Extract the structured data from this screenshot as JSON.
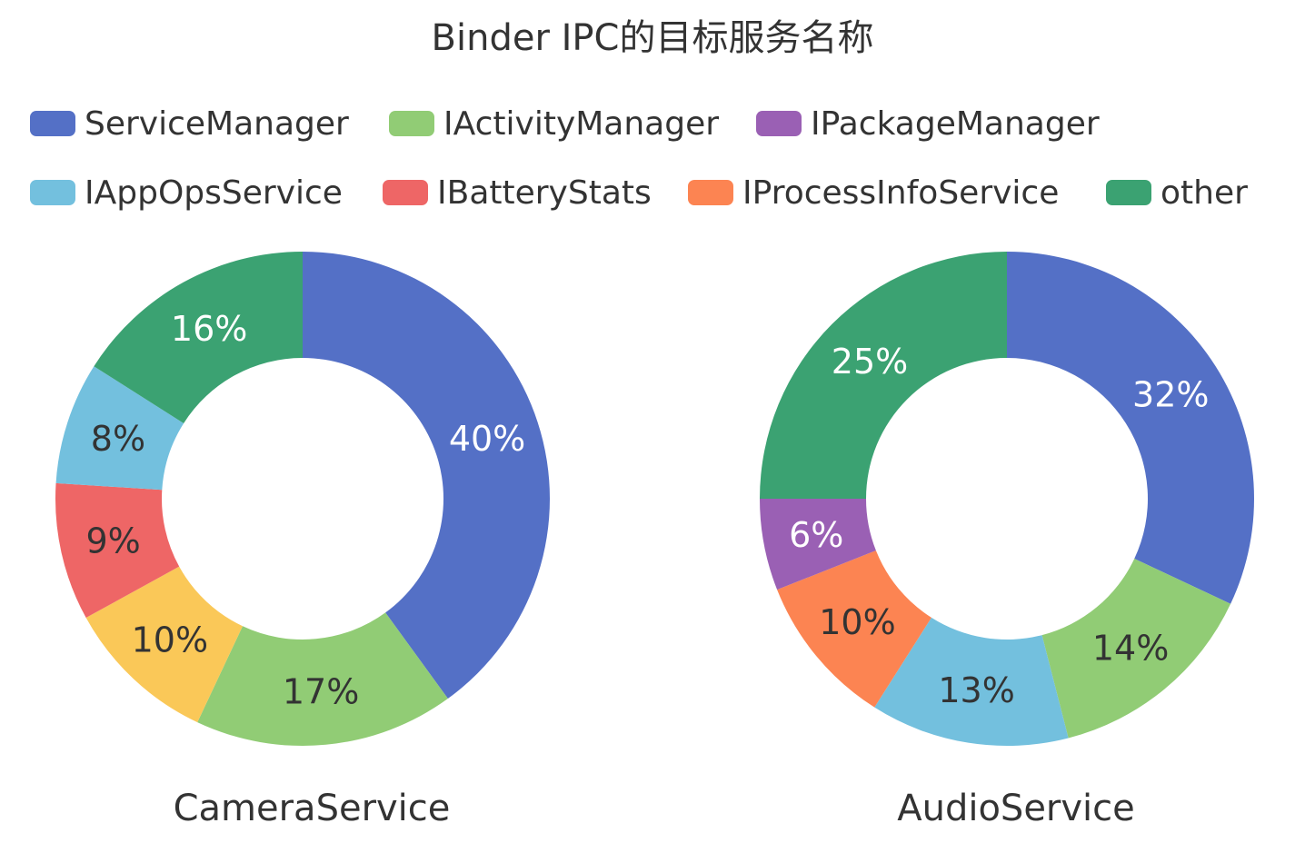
{
  "title": "Binder IPC的目标服务名称",
  "legend": {
    "rows": [
      [
        {
          "label": "ServiceManager",
          "color": "#5470c6"
        },
        {
          "label": "IActivityManager",
          "color": "#91cc75"
        },
        {
          "label": "IPackageManager",
          "color": "#9a60b4"
        }
      ],
      [
        {
          "label": "IAppOpsService",
          "color": "#73c0de"
        },
        {
          "label": "IBatteryStats",
          "color": "#ee6666"
        },
        {
          "label": "IProcessInfoService",
          "color": "#fc8452"
        },
        {
          "label": "other",
          "color": "#3ba272"
        }
      ]
    ]
  },
  "chart_data": [
    {
      "type": "pie",
      "variant": "donut",
      "name": "CameraService",
      "unit": "%",
      "slices": [
        {
          "label": "ServiceManager",
          "value": 40,
          "color": "#5470c6",
          "label_color": "#ffffff"
        },
        {
          "label": "IActivityManager",
          "value": 17,
          "color": "#91cc75",
          "label_color": "#333333"
        },
        {
          "label": "",
          "value": 10,
          "color": "#fac858",
          "label_color": "#333333"
        },
        {
          "label": "IBatteryStats",
          "value": 9,
          "color": "#ee6666",
          "label_color": "#333333"
        },
        {
          "label": "IAppOpsService",
          "value": 8,
          "color": "#73c0de",
          "label_color": "#333333"
        },
        {
          "label": "other",
          "value": 16,
          "color": "#3ba272",
          "label_color": "#ffffff"
        }
      ]
    },
    {
      "type": "pie",
      "variant": "donut",
      "name": "AudioService",
      "unit": "%",
      "slices": [
        {
          "label": "ServiceManager",
          "value": 32,
          "color": "#5470c6",
          "label_color": "#ffffff"
        },
        {
          "label": "IActivityManager",
          "value": 14,
          "color": "#91cc75",
          "label_color": "#333333"
        },
        {
          "label": "IAppOpsService",
          "value": 13,
          "color": "#73c0de",
          "label_color": "#333333"
        },
        {
          "label": "IProcessInfoService",
          "value": 10,
          "color": "#fc8452",
          "label_color": "#333333"
        },
        {
          "label": "IPackageManager",
          "value": 6,
          "color": "#9a60b4",
          "label_color": "#ffffff"
        },
        {
          "label": "other",
          "value": 25,
          "color": "#3ba272",
          "label_color": "#ffffff"
        }
      ]
    }
  ]
}
